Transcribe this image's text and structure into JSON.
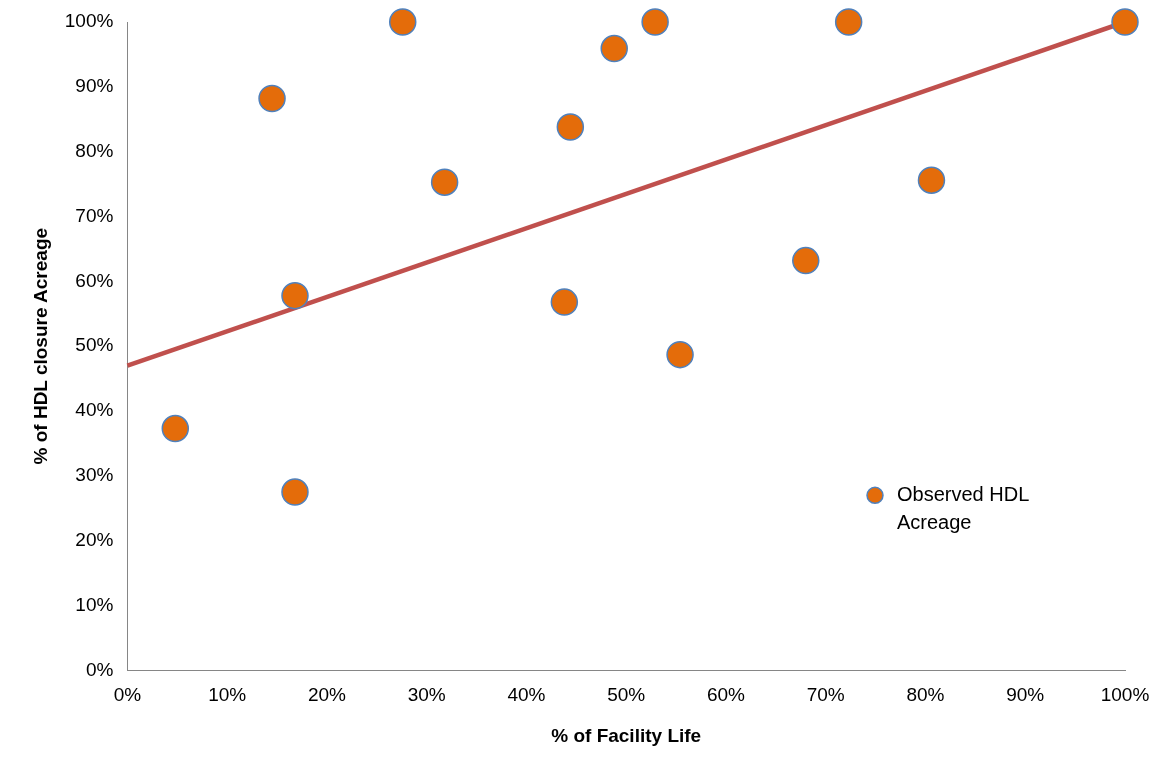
{
  "chart_data": {
    "type": "scatter",
    "xlabel": "% of Facility Life",
    "ylabel": "% of HDL closure Acreage",
    "xlim": [
      0,
      100
    ],
    "ylim": [
      0,
      100
    ],
    "xticks": [
      {
        "value": 0,
        "label": "0%"
      },
      {
        "value": 10,
        "label": "10%"
      },
      {
        "value": 20,
        "label": "20%"
      },
      {
        "value": 30,
        "label": "30%"
      },
      {
        "value": 40,
        "label": "40%"
      },
      {
        "value": 50,
        "label": "50%"
      },
      {
        "value": 60,
        "label": "60%"
      },
      {
        "value": 70,
        "label": "70%"
      },
      {
        "value": 80,
        "label": "80%"
      },
      {
        "value": 90,
        "label": "90%"
      },
      {
        "value": 100,
        "label": "100%"
      }
    ],
    "yticks": [
      {
        "value": 0,
        "label": "0%"
      },
      {
        "value": 10,
        "label": "10%"
      },
      {
        "value": 20,
        "label": "20%"
      },
      {
        "value": 30,
        "label": "30%"
      },
      {
        "value": 40,
        "label": "40%"
      },
      {
        "value": 50,
        "label": "50%"
      },
      {
        "value": 60,
        "label": "60%"
      },
      {
        "value": 70,
        "label": "70%"
      },
      {
        "value": 80,
        "label": "80%"
      },
      {
        "value": 90,
        "label": "90%"
      },
      {
        "value": 100,
        "label": "100%"
      }
    ],
    "legend": "right",
    "marker": "circle",
    "series": [
      {
        "name": "Observed HDL Acreage",
        "type": "scatter",
        "color": "#e46c0a",
        "x": [
          4.8,
          14.5,
          16.8,
          16.8,
          27.6,
          31.8,
          43.8,
          44.4,
          48.8,
          52.9,
          55.4,
          68,
          72.3,
          80.6,
          100
        ],
        "values": [
          37.3,
          88.2,
          57.8,
          27.5,
          100,
          75.3,
          56.8,
          83.8,
          95.9,
          100,
          48.7,
          63.2,
          100,
          75.6,
          100
        ]
      },
      {
        "type": "line",
        "color": "#c0504d",
        "x": [
          0,
          100
        ],
        "values": [
          47,
          100
        ],
        "marker": "none"
      }
    ]
  }
}
